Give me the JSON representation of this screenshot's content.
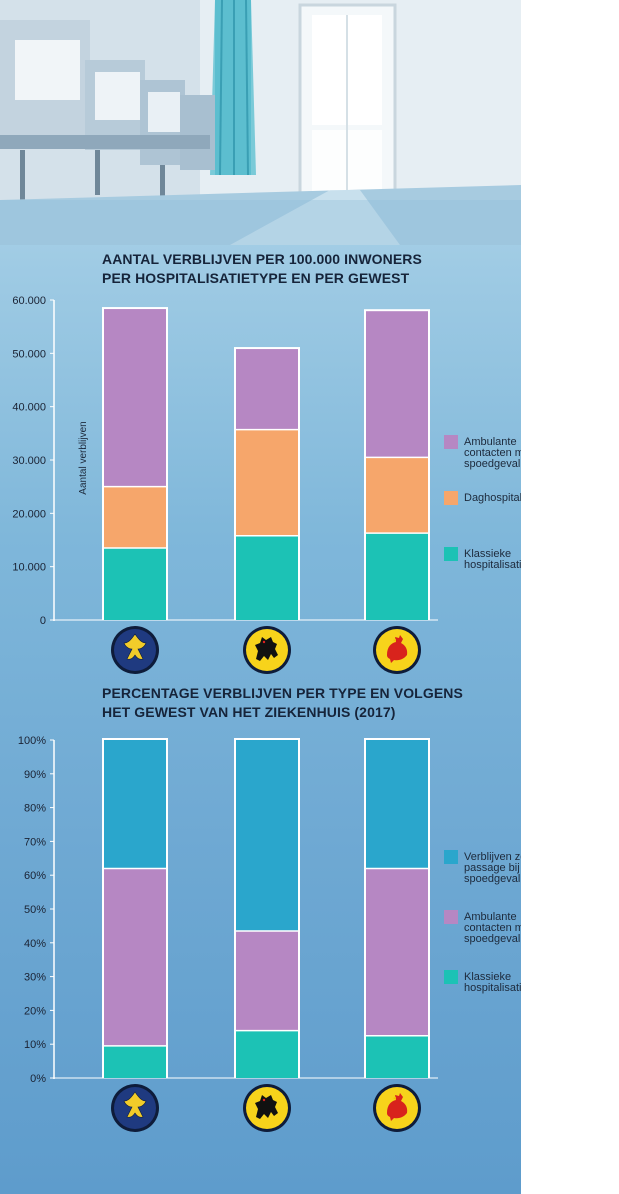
{
  "chart_data": [
    {
      "type": "bar",
      "stacked": true,
      "title_lines": [
        "AANTAL VERBLIJVEN PER 100.000 INWONERS",
        "PER HOSPITALISATIETYPE EN PER GEWEST"
      ],
      "ylabel": "Aantal verblijven",
      "ylim": [
        0,
        60000
      ],
      "yticks": [
        "0",
        "10.000",
        "20.000",
        "30.000",
        "40.000",
        "50.000",
        "60.000"
      ],
      "categories": [
        "Brussel",
        "Vlaanderen",
        "Wallonië"
      ],
      "series": [
        {
          "name": "Klassieke hospitalisatie",
          "label_lines": [
            "Klassieke",
            "hospitalisatie"
          ],
          "color": "#1cc2b5",
          "values": [
            13500,
            15800,
            16300
          ]
        },
        {
          "name": "Daghospitalisatie",
          "label_lines": [
            "Daghospitalisatie"
          ],
          "color": "#f6a66b",
          "values": [
            11500,
            19900,
            14200
          ]
        },
        {
          "name": "Ambulante contacten met de spoedgevallendienst",
          "label_lines": [
            "Ambulante",
            "contacten met de",
            "spoedgevallendienst"
          ],
          "color": "#b687c3",
          "values": [
            33300,
            15100,
            27400
          ]
        }
      ],
      "legend": "right",
      "grid": false
    },
    {
      "type": "bar",
      "stacked": true,
      "title_lines": [
        "PERCENTAGE VERBLIJVEN PER TYPE EN VOLGENS",
        "HET GEWEST VAN HET ZIEKENHUIS (2017)"
      ],
      "ylim": [
        0,
        100
      ],
      "yticks": [
        "0%",
        "10%",
        "20%",
        "30%",
        "40%",
        "50%",
        "60%",
        "70%",
        "80%",
        "90%",
        "100%"
      ],
      "categories": [
        "Brussel",
        "Vlaanderen",
        "Wallonië"
      ],
      "series": [
        {
          "name": "Klassieke hospitalisatie",
          "label_lines": [
            "Klassieke",
            "hospitalisatie"
          ],
          "color": "#1cc2b5",
          "values": [
            9.5,
            14,
            12.5
          ]
        },
        {
          "name": "Ambulante contacten met de spoedgevallendienst",
          "label_lines": [
            "Ambulante",
            "contacten met de",
            "spoedgevallendienst"
          ],
          "color": "#b687c3",
          "values": [
            52.5,
            29.5,
            49.5
          ]
        },
        {
          "name": "Verblijven zonder passage bij de spoedgevallendienst",
          "label_lines": [
            "Verblijven zonder",
            "passage bij de",
            "spoedgevallendienst"
          ],
          "color": "#2aa6cc",
          "values": [
            38,
            56.5,
            38
          ]
        }
      ],
      "legend": "right",
      "grid": false
    }
  ],
  "regions": [
    {
      "name": "Brussel",
      "icon": "brussels-iris-emblem-icon",
      "bg": "#1f3a80",
      "fg": "#f2cc2a"
    },
    {
      "name": "Vlaanderen",
      "icon": "flemish-lion-emblem-icon",
      "bg": "#f7d31b",
      "fg": "#111111"
    },
    {
      "name": "Wallonië",
      "icon": "walloon-rooster-emblem-icon",
      "bg": "#f7d31b",
      "fg": "#d8231c"
    }
  ]
}
